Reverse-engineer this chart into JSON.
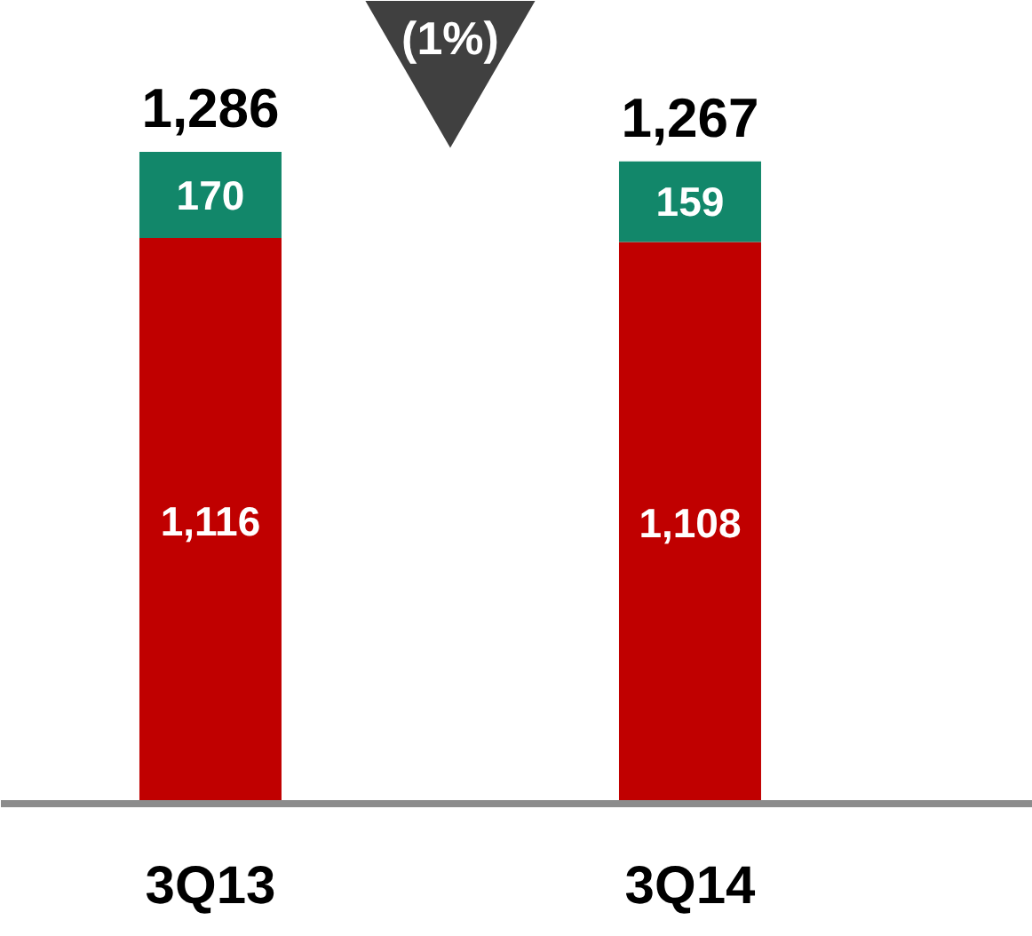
{
  "chart_data": {
    "type": "bar",
    "stacked": true,
    "categories": [
      "3Q13",
      "3Q14"
    ],
    "series": [
      {
        "color": "#c00000",
        "values": [
          1116,
          1108
        ],
        "value_labels": [
          "1,116",
          "1,108"
        ]
      },
      {
        "color": "#12876a",
        "values": [
          170,
          159
        ],
        "value_labels": [
          "170",
          "159"
        ]
      }
    ],
    "totals": [
      "1,286",
      "1,267"
    ],
    "annotations": [
      "(1%)"
    ],
    "grid": false
  }
}
